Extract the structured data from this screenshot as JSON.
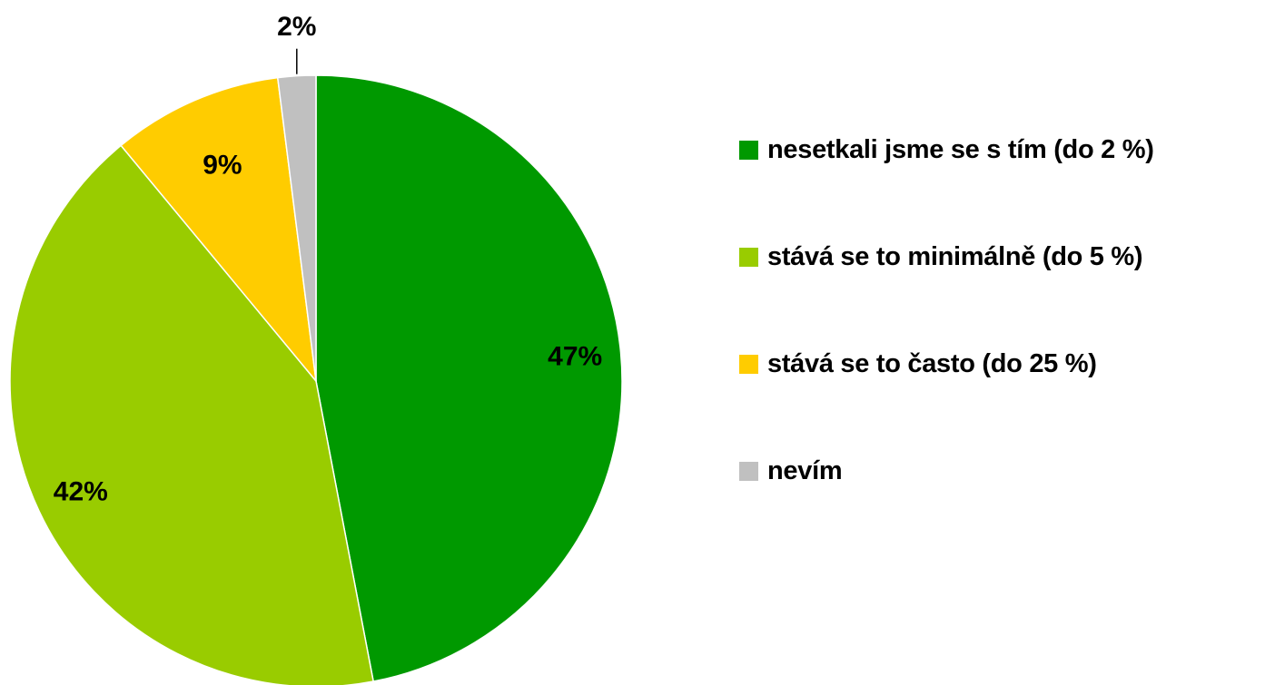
{
  "chart_data": {
    "type": "pie",
    "title": "",
    "slices": [
      {
        "label": "nesetkali jsme se s tím (do 2 %)",
        "value": 47,
        "display": "47%",
        "color": "#009900"
      },
      {
        "label": "stává se to minimálně (do 5 %)",
        "value": 42,
        "display": "42%",
        "color": "#99CC00"
      },
      {
        "label": "stává se to často (do 25 %)",
        "value": 9,
        "display": "9%",
        "color": "#FFCC00"
      },
      {
        "label": "nevím",
        "value": 2,
        "display": "2%",
        "color": "#C0C0C0"
      }
    ],
    "legend_position": "right"
  }
}
